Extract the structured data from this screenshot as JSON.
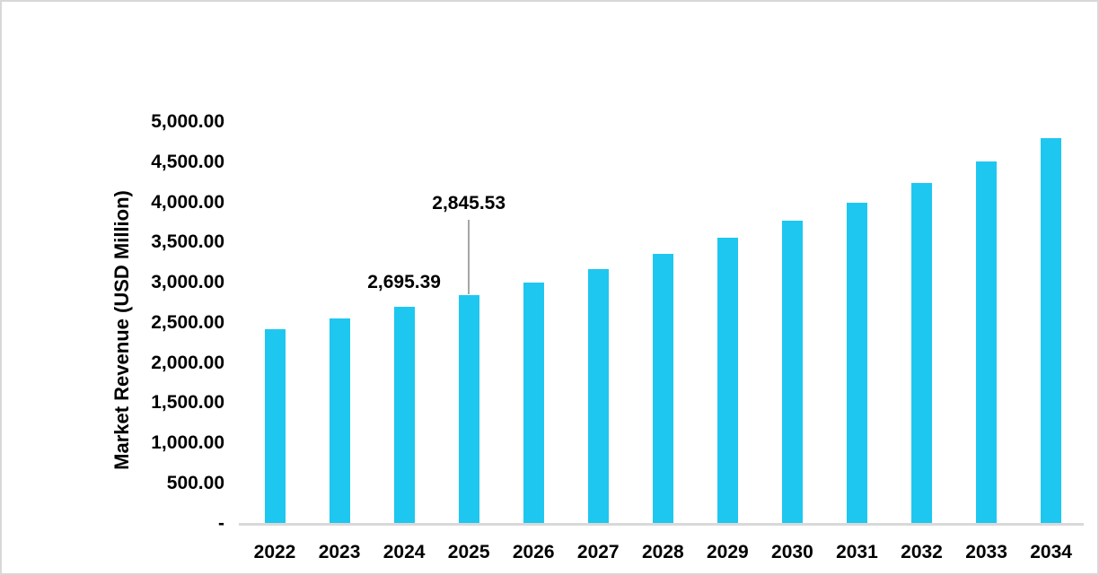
{
  "page": {
    "background": "#ffffff",
    "border_color": "#d8d8d8"
  },
  "chart_data": {
    "type": "bar",
    "title": "",
    "categories": [
      "2022",
      "2023",
      "2024",
      "2025",
      "2026",
      "2027",
      "2028",
      "2029",
      "2030",
      "2031",
      "2032",
      "2033",
      "2034"
    ],
    "values": [
      2415,
      2552,
      2695.39,
      2845.53,
      3004,
      3170,
      3360,
      3562,
      3772,
      3990,
      4243,
      4503,
      4800
    ],
    "xlabel": "",
    "ylabel": "Market Revenue (USD Million)",
    "ylim": [
      0,
      5000
    ],
    "ytick_step": 500,
    "ytick_labels": [
      "-",
      "500.00",
      "1,000.00",
      "1,500.00",
      "2,000.00",
      "2,500.00",
      "3,000.00",
      "3,500.00",
      "4,000.00",
      "4,500.00",
      "5,000.00"
    ],
    "grid": false,
    "legend": null,
    "bar_color": "#1ec7f0",
    "axis_line_color": "#d9d9d9",
    "leader_line_color": "#a6a6a6",
    "text_color": "#000000",
    "data_labels": [
      {
        "category": "2024",
        "text": "2,695.39",
        "placement": "above-bar"
      },
      {
        "category": "2025",
        "text": "2,845.53",
        "placement": "callout-with-leader-line"
      }
    ]
  }
}
